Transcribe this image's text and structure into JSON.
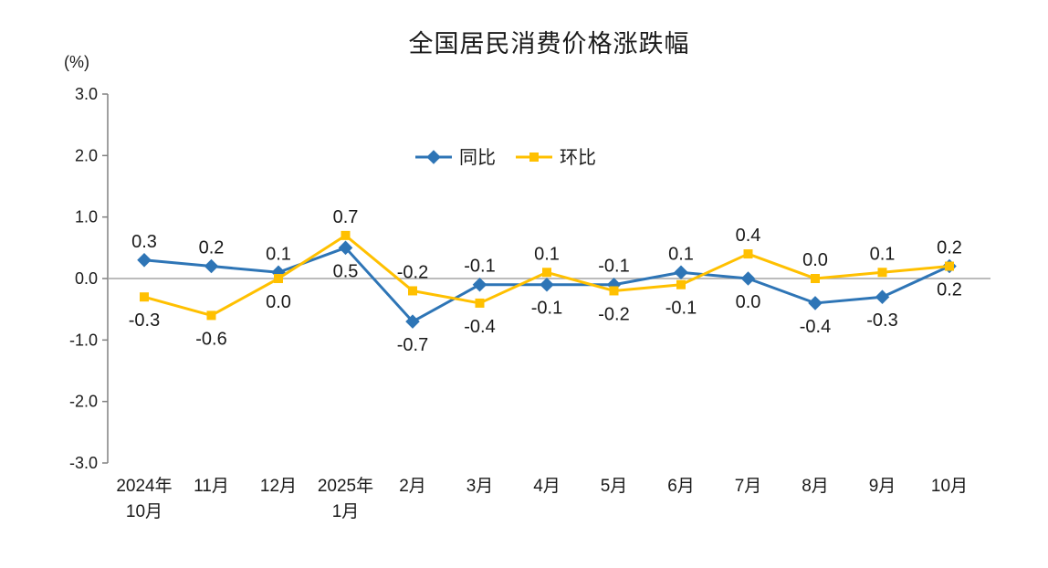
{
  "chart_data": {
    "type": "line",
    "title": "全国居民消费价格涨跌幅",
    "unit": "(%)",
    "categories": [
      "2024年\n10月",
      "11月",
      "12月",
      "2025年\n1月",
      "2月",
      "3月",
      "4月",
      "5月",
      "6月",
      "7月",
      "8月",
      "9月",
      "10月"
    ],
    "series": [
      {
        "name": "同比",
        "color": "#2E75B6",
        "marker": "diamond",
        "values": [
          0.3,
          0.2,
          0.1,
          0.5,
          -0.7,
          -0.1,
          -0.1,
          -0.1,
          0.1,
          0.0,
          -0.4,
          -0.3,
          0.2
        ],
        "label_side": [
          "above",
          "above",
          "above",
          "below",
          "below",
          "above",
          "below",
          "above",
          "above",
          "below",
          "below",
          "below",
          "below"
        ]
      },
      {
        "name": "环比",
        "color": "#FFC000",
        "marker": "square",
        "values": [
          -0.3,
          -0.6,
          0.0,
          0.7,
          -0.2,
          -0.4,
          0.1,
          -0.2,
          -0.1,
          0.4,
          0.0,
          0.1,
          0.2
        ],
        "label_side": [
          "below",
          "below",
          "below",
          "above",
          "above",
          "below",
          "above",
          "below",
          "below",
          "above",
          "above",
          "above",
          "above"
        ]
      }
    ],
    "ylim": [
      -3.0,
      3.0
    ],
    "yticks": [
      3.0,
      2.0,
      1.0,
      0.0,
      -1.0,
      -2.0,
      -3.0
    ],
    "ytick_labels": [
      "3.0",
      "2.0",
      "1.0",
      "0.0",
      "-1.0",
      "-2.0",
      "-3.0"
    ],
    "grid": false,
    "zero_line": true,
    "legend_position": "top-center-inside",
    "axis_color": "#808080",
    "zero_line_color": "#A6A6A6"
  }
}
